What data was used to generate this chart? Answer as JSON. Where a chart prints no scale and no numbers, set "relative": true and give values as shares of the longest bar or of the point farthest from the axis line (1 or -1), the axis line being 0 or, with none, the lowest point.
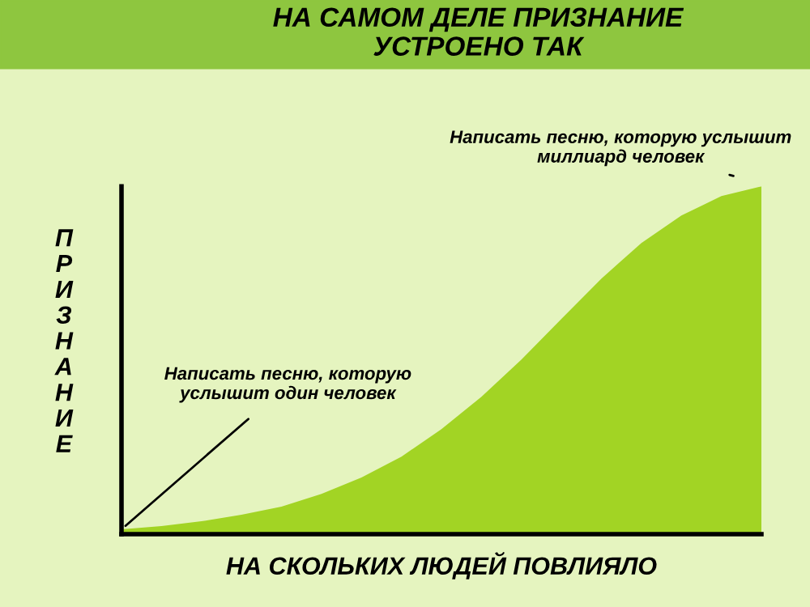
{
  "chart_data": {
    "type": "area",
    "title": "НА САМОМ ДЕЛЕ ПРИЗНАНИЕ\nУСТРОЕНО ТАК",
    "xlabel": "НА СКОЛЬКИХ ЛЮДЕЙ ПОВЛИЯЛО",
    "ylabel": "ПРИЗНАНИЕ",
    "categories": [
      null,
      null,
      null,
      null,
      null,
      null,
      null,
      null,
      null,
      null,
      null,
      null,
      null,
      null,
      null,
      null,
      null
    ],
    "relative": true,
    "series": [
      {
        "color": "#a2d424",
        "values": [
          0.014,
          0.023,
          0.037,
          0.056,
          0.079,
          0.116,
          0.163,
          0.223,
          0.302,
          0.395,
          0.502,
          0.619,
          0.735,
          0.837,
          0.916,
          0.972,
          1.0
        ]
      }
    ],
    "annotations": [
      "Написать песню, которую\nуслышит один человек",
      "Написать песню, которую услышит\nмиллиард человек"
    ]
  }
}
